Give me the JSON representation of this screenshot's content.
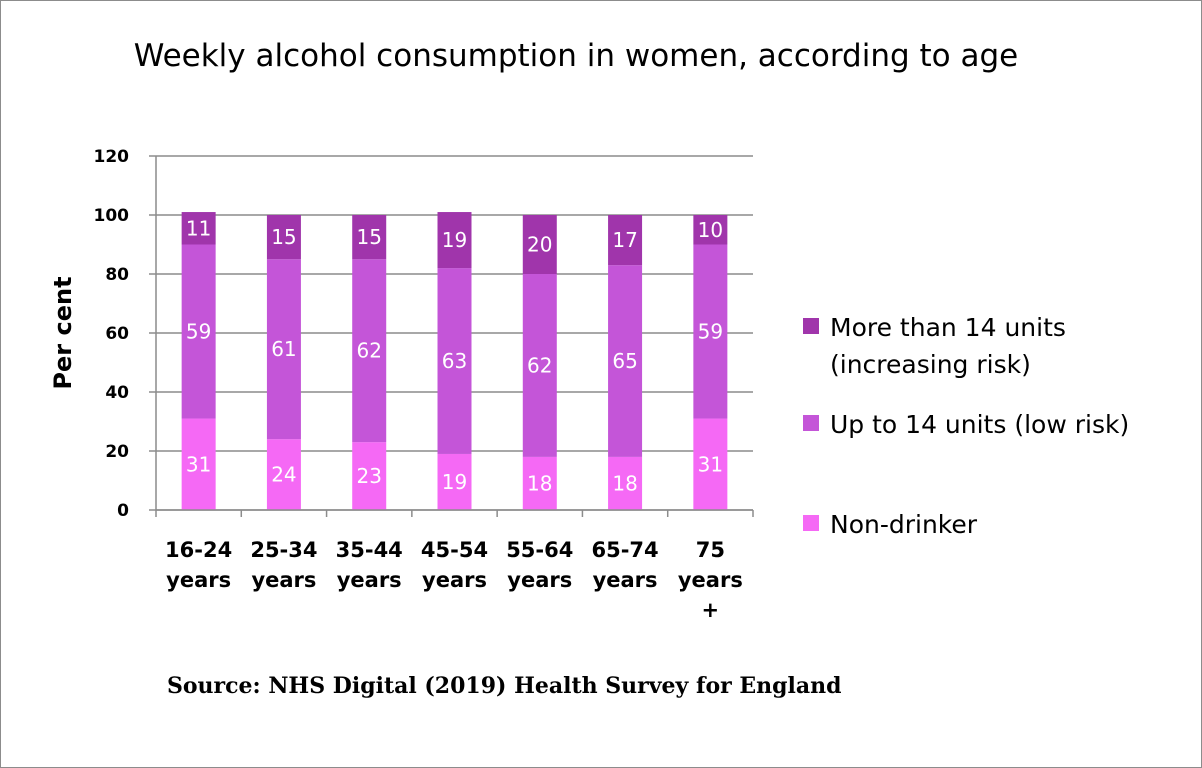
{
  "chart_data": {
    "type": "bar",
    "stacked": true,
    "title": "Weekly alcohol consumption in women, according to age",
    "ylabel": "Per cent",
    "xlabel": "",
    "ylim": [
      0,
      120
    ],
    "yticks": [
      0,
      20,
      40,
      60,
      80,
      100,
      120
    ],
    "grid": true,
    "legend_position": "right",
    "categories": [
      [
        "16-24",
        "years"
      ],
      [
        "25-34",
        "years"
      ],
      [
        "35-44",
        "years"
      ],
      [
        "45-54",
        "years"
      ],
      [
        "55-64",
        "years"
      ],
      [
        "65-74",
        "years"
      ],
      [
        "75",
        "years",
        "+"
      ]
    ],
    "series": [
      {
        "name": "Non-drinker",
        "color": "#f569f5",
        "values": [
          31,
          24,
          23,
          19,
          18,
          18,
          31
        ]
      },
      {
        "name": "Up to 14 units (low risk)",
        "color": "#c455d8",
        "values": [
          59,
          61,
          62,
          63,
          62,
          65,
          59
        ]
      },
      {
        "name": "More than 14 units (increasing risk)",
        "color": "#a035ab",
        "values": [
          11,
          15,
          15,
          19,
          20,
          17,
          10
        ]
      }
    ],
    "legend": [
      {
        "lines": [
          "More than 14 units",
          "(increasing risk)"
        ],
        "color": "#a035ab"
      },
      {
        "lines": [
          "Up to 14 units (low risk)"
        ],
        "color": "#c455d8"
      },
      {
        "lines": [
          "Non-drinker"
        ],
        "color": "#f569f5"
      }
    ]
  },
  "source": "Source: NHS Digital (2019) Health Survey for England"
}
